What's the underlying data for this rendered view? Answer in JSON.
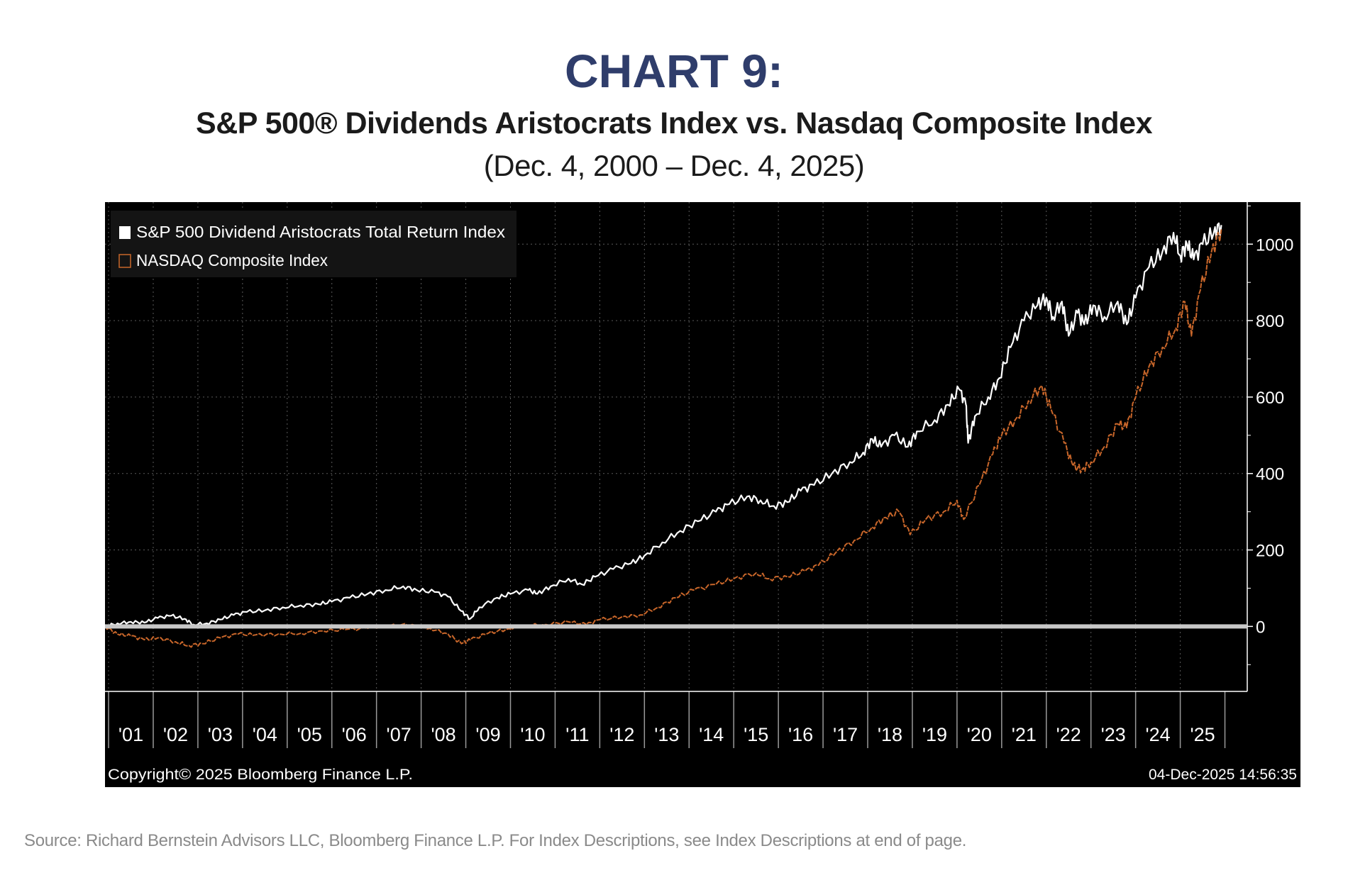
{
  "header": {
    "title": "CHART 9:",
    "subtitle": "S&P 500® Dividends Aristocrats Index vs. Nasdaq Composite Index",
    "date_range": "(Dec. 4, 2000 – Dec. 4, 2025)"
  },
  "footer": {
    "copyright": "Copyright© 2025 Bloomberg Finance L.P.",
    "timestamp": "04-Dec-2025 14:56:35",
    "source": "Source: Richard Bernstein Advisors LLC, Bloomberg Finance L.P. For Index Descriptions, see Index Descriptions at end of page."
  },
  "colors": {
    "background": "#000000",
    "aristocrats": "#ffffff",
    "nasdaq": "#c8662a",
    "zero_line": "#c8c8c8",
    "title": "#2f3d6b"
  },
  "chart_data": {
    "type": "line",
    "x_tick_labels": [
      "'01",
      "'02",
      "'03",
      "'04",
      "'05",
      "'06",
      "'07",
      "'08",
      "'09",
      "'10",
      "'11",
      "'12",
      "'13",
      "'14",
      "'15",
      "'16",
      "'17",
      "'18",
      "'19",
      "'20",
      "'21",
      "'22",
      "'23",
      "'24",
      "'25"
    ],
    "y_tick_labels": [
      "0",
      "200",
      "400",
      "600",
      "800",
      "1000"
    ],
    "y_ticks": [
      0,
      200,
      400,
      600,
      800,
      1000
    ],
    "xlim": [
      2000.92,
      2026.5
    ],
    "ylim": [
      -170,
      1110
    ],
    "grid": true,
    "legend_position": "top-left",
    "series": [
      {
        "name": "S&P 500 Dividend Aristocrats Total Return Index",
        "color": "#ffffff",
        "points": [
          [
            2000.92,
            0
          ],
          [
            2001.2,
            8
          ],
          [
            2001.5,
            12
          ],
          [
            2001.8,
            10
          ],
          [
            2002.1,
            22
          ],
          [
            2002.4,
            28
          ],
          [
            2002.7,
            20
          ],
          [
            2002.9,
            5
          ],
          [
            2003.2,
            8
          ],
          [
            2003.5,
            18
          ],
          [
            2003.8,
            30
          ],
          [
            2004.1,
            38
          ],
          [
            2004.5,
            42
          ],
          [
            2004.9,
            50
          ],
          [
            2005.3,
            55
          ],
          [
            2005.7,
            58
          ],
          [
            2006.0,
            65
          ],
          [
            2006.4,
            75
          ],
          [
            2006.8,
            85
          ],
          [
            2007.2,
            95
          ],
          [
            2007.6,
            105
          ],
          [
            2007.9,
            95
          ],
          [
            2008.3,
            90
          ],
          [
            2008.6,
            78
          ],
          [
            2008.9,
            40
          ],
          [
            2009.1,
            20
          ],
          [
            2009.3,
            50
          ],
          [
            2009.7,
            75
          ],
          [
            2010.0,
            85
          ],
          [
            2010.4,
            95
          ],
          [
            2010.6,
            85
          ],
          [
            2010.9,
            105
          ],
          [
            2011.3,
            125
          ],
          [
            2011.6,
            110
          ],
          [
            2011.9,
            130
          ],
          [
            2012.3,
            150
          ],
          [
            2012.7,
            165
          ],
          [
            2013.0,
            185
          ],
          [
            2013.4,
            220
          ],
          [
            2013.8,
            250
          ],
          [
            2014.2,
            275
          ],
          [
            2014.6,
            300
          ],
          [
            2014.9,
            320
          ],
          [
            2015.3,
            340
          ],
          [
            2015.6,
            330
          ],
          [
            2015.9,
            315
          ],
          [
            2016.2,
            325
          ],
          [
            2016.5,
            355
          ],
          [
            2016.8,
            370
          ],
          [
            2017.2,
            400
          ],
          [
            2017.6,
            430
          ],
          [
            2017.9,
            455
          ],
          [
            2018.1,
            490
          ],
          [
            2018.3,
            470
          ],
          [
            2018.6,
            500
          ],
          [
            2018.9,
            470
          ],
          [
            2019.1,
            510
          ],
          [
            2019.5,
            540
          ],
          [
            2019.8,
            580
          ],
          [
            2020.05,
            620
          ],
          [
            2020.2,
            580
          ],
          [
            2020.25,
            480
          ],
          [
            2020.4,
            550
          ],
          [
            2020.7,
            600
          ],
          [
            2020.95,
            650
          ],
          [
            2021.2,
            730
          ],
          [
            2021.5,
            800
          ],
          [
            2021.8,
            840
          ],
          [
            2022.0,
            860
          ],
          [
            2022.15,
            810
          ],
          [
            2022.35,
            850
          ],
          [
            2022.5,
            760
          ],
          [
            2022.7,
            820
          ],
          [
            2022.85,
            790
          ],
          [
            2023.05,
            840
          ],
          [
            2023.3,
            810
          ],
          [
            2023.6,
            850
          ],
          [
            2023.8,
            790
          ],
          [
            2024.0,
            860
          ],
          [
            2024.3,
            940
          ],
          [
            2024.6,
            980
          ],
          [
            2024.85,
            1030
          ],
          [
            2025.0,
            970
          ],
          [
            2025.15,
            1000
          ],
          [
            2025.3,
            960
          ],
          [
            2025.5,
            1000
          ],
          [
            2025.75,
            1030
          ],
          [
            2025.92,
            1050
          ]
        ]
      },
      {
        "name": "NASDAQ Composite Index",
        "color": "#c8662a",
        "points": [
          [
            2000.92,
            0
          ],
          [
            2001.2,
            -20
          ],
          [
            2001.5,
            -25
          ],
          [
            2001.8,
            -35
          ],
          [
            2002.1,
            -30
          ],
          [
            2002.5,
            -40
          ],
          [
            2002.8,
            -50
          ],
          [
            2003.1,
            -45
          ],
          [
            2003.5,
            -30
          ],
          [
            2003.9,
            -20
          ],
          [
            2004.3,
            -22
          ],
          [
            2004.8,
            -20
          ],
          [
            2005.3,
            -18
          ],
          [
            2005.8,
            -12
          ],
          [
            2006.3,
            -8
          ],
          [
            2006.8,
            -5
          ],
          [
            2007.3,
            2
          ],
          [
            2007.8,
            5
          ],
          [
            2008.2,
            -5
          ],
          [
            2008.6,
            -20
          ],
          [
            2008.9,
            -45
          ],
          [
            2009.1,
            -35
          ],
          [
            2009.5,
            -18
          ],
          [
            2009.9,
            -8
          ],
          [
            2010.3,
            2
          ],
          [
            2010.8,
            5
          ],
          [
            2011.3,
            12
          ],
          [
            2011.7,
            5
          ],
          [
            2012.0,
            18
          ],
          [
            2012.5,
            25
          ],
          [
            2012.9,
            30
          ],
          [
            2013.3,
            50
          ],
          [
            2013.7,
            75
          ],
          [
            2014.1,
            95
          ],
          [
            2014.6,
            110
          ],
          [
            2015.0,
            125
          ],
          [
            2015.5,
            140
          ],
          [
            2015.8,
            125
          ],
          [
            2016.2,
            130
          ],
          [
            2016.6,
            145
          ],
          [
            2016.9,
            160
          ],
          [
            2017.3,
            195
          ],
          [
            2017.7,
            225
          ],
          [
            2018.1,
            260
          ],
          [
            2018.4,
            285
          ],
          [
            2018.7,
            300
          ],
          [
            2018.95,
            240
          ],
          [
            2019.3,
            280
          ],
          [
            2019.7,
            300
          ],
          [
            2020.0,
            330
          ],
          [
            2020.15,
            280
          ],
          [
            2020.5,
            370
          ],
          [
            2020.8,
            450
          ],
          [
            2021.0,
            500
          ],
          [
            2021.3,
            540
          ],
          [
            2021.6,
            590
          ],
          [
            2021.9,
            630
          ],
          [
            2022.1,
            570
          ],
          [
            2022.4,
            480
          ],
          [
            2022.6,
            420
          ],
          [
            2022.8,
            410
          ],
          [
            2023.0,
            430
          ],
          [
            2023.3,
            470
          ],
          [
            2023.6,
            530
          ],
          [
            2023.8,
            520
          ],
          [
            2024.0,
            600
          ],
          [
            2024.3,
            680
          ],
          [
            2024.6,
            730
          ],
          [
            2024.9,
            780
          ],
          [
            2025.1,
            850
          ],
          [
            2025.25,
            760
          ],
          [
            2025.45,
            880
          ],
          [
            2025.7,
            980
          ],
          [
            2025.92,
            1040
          ]
        ]
      }
    ]
  }
}
